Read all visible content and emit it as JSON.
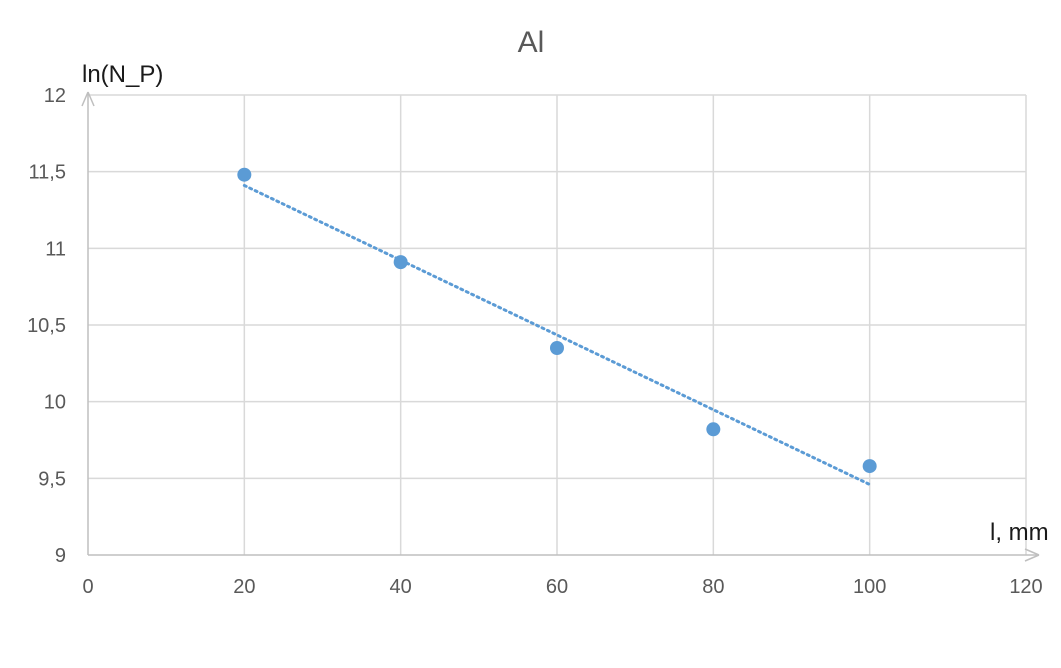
{
  "chart_data": {
    "type": "scatter",
    "title": "Al",
    "xlabel": "l, mm",
    "ylabel": "ln(N_P)",
    "xlim": [
      0,
      120
    ],
    "ylim": [
      9,
      12
    ],
    "x_ticks": [
      0,
      20,
      40,
      60,
      80,
      100,
      120
    ],
    "y_ticks": [
      9,
      9.5,
      10,
      10.5,
      11,
      11.5,
      12
    ],
    "x_tick_labels": [
      "0",
      "20",
      "40",
      "60",
      "80",
      "100",
      "120"
    ],
    "y_tick_labels": [
      "9",
      "9,5",
      "10",
      "10,5",
      "11",
      "11,5",
      "12"
    ],
    "grid": true,
    "marker_color": "#5b9bd5",
    "series": [
      {
        "x": [
          20,
          40,
          60,
          80,
          100
        ],
        "y": [
          11.48,
          10.91,
          10.35,
          9.82,
          9.58
        ]
      }
    ],
    "trendline": {
      "type": "linear",
      "style": "dotted",
      "color": "#5b9bd5",
      "x": [
        20,
        100
      ],
      "y": [
        11.41,
        9.46
      ]
    }
  }
}
